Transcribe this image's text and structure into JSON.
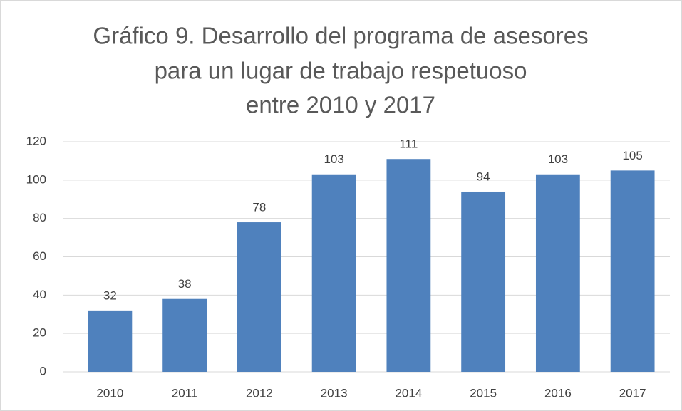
{
  "chart_data": {
    "type": "bar",
    "title": [
      "Gráfico 9. Desarrollo del programa de asesores",
      "para un lugar de trabajo respetuoso",
      "entre 2010 y 2017"
    ],
    "categories": [
      "2010",
      "2011",
      "2012",
      "2013",
      "2014",
      "2015",
      "2016",
      "2017"
    ],
    "values": [
      32,
      38,
      78,
      103,
      111,
      94,
      103,
      105
    ],
    "color": "#4f81bd",
    "ylim": [
      0,
      120
    ],
    "yticks": [
      0,
      20,
      40,
      60,
      80,
      100,
      120
    ],
    "grid": true
  }
}
